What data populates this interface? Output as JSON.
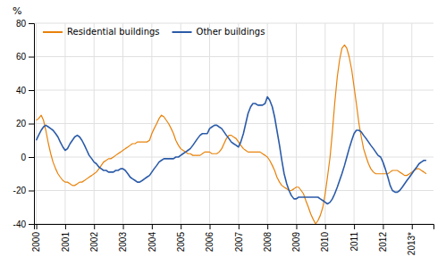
{
  "chart_data": {
    "type": "line",
    "ylabel": "%",
    "xlim": [
      1999.92,
      2013.75
    ],
    "xticks": [
      2000,
      2001,
      2002,
      2003,
      2004,
      2005,
      2006,
      2007,
      2008,
      2009,
      2010,
      2011,
      2012,
      {
        "value": 2013,
        "label": "2013*"
      }
    ],
    "ylim": [
      -40,
      80
    ],
    "yticks": [
      -40,
      -20,
      0,
      20,
      40,
      60,
      80
    ],
    "grid": true,
    "legend": "upper left",
    "x": [
      2000.0,
      2000.08,
      2000.17,
      2000.25,
      2000.33,
      2000.42,
      2000.5,
      2000.58,
      2000.67,
      2000.75,
      2000.83,
      2000.92,
      2001.0,
      2001.08,
      2001.17,
      2001.25,
      2001.33,
      2001.42,
      2001.5,
      2001.58,
      2001.67,
      2001.75,
      2001.83,
      2001.92,
      2002.0,
      2002.08,
      2002.17,
      2002.25,
      2002.33,
      2002.42,
      2002.5,
      2002.58,
      2002.67,
      2002.75,
      2002.83,
      2002.92,
      2003.0,
      2003.08,
      2003.17,
      2003.25,
      2003.33,
      2003.42,
      2003.5,
      2003.58,
      2003.67,
      2003.75,
      2003.83,
      2003.92,
      2004.0,
      2004.08,
      2004.17,
      2004.25,
      2004.33,
      2004.42,
      2004.5,
      2004.58,
      2004.67,
      2004.75,
      2004.83,
      2004.92,
      2005.0,
      2005.08,
      2005.17,
      2005.25,
      2005.33,
      2005.42,
      2005.5,
      2005.58,
      2005.67,
      2005.75,
      2005.83,
      2005.92,
      2006.0,
      2006.08,
      2006.17,
      2006.25,
      2006.33,
      2006.42,
      2006.5,
      2006.58,
      2006.67,
      2006.75,
      2006.83,
      2006.92,
      2007.0,
      2007.08,
      2007.17,
      2007.25,
      2007.33,
      2007.42,
      2007.5,
      2007.58,
      2007.67,
      2007.75,
      2007.83,
      2007.92,
      2008.0,
      2008.08,
      2008.17,
      2008.25,
      2008.33,
      2008.42,
      2008.5,
      2008.58,
      2008.67,
      2008.75,
      2008.83,
      2008.92,
      2009.0,
      2009.08,
      2009.17,
      2009.25,
      2009.33,
      2009.42,
      2009.5,
      2009.58,
      2009.67,
      2009.75,
      2009.83,
      2009.92,
      2010.0,
      2010.08,
      2010.17,
      2010.25,
      2010.33,
      2010.42,
      2010.5,
      2010.58,
      2010.67,
      2010.75,
      2010.83,
      2010.92,
      2011.0,
      2011.08,
      2011.17,
      2011.25,
      2011.33,
      2011.42,
      2011.5,
      2011.58,
      2011.67,
      2011.75,
      2011.83,
      2011.92,
      2012.0,
      2012.08,
      2012.17,
      2012.25,
      2012.33,
      2012.42,
      2012.5,
      2012.58,
      2012.67,
      2012.75,
      2012.83,
      2012.92,
      2013.0,
      2013.08,
      2013.17,
      2013.25,
      2013.33,
      2013.42,
      2013.5
    ],
    "series": [
      {
        "name": "Residential buildings",
        "color": "#E8820A",
        "values": [
          22,
          23,
          25,
          22,
          16,
          8,
          2,
          -3,
          -7,
          -10,
          -12,
          -14,
          -15,
          -15,
          -16,
          -17,
          -17,
          -16,
          -15,
          -15,
          -14,
          -13,
          -12,
          -11,
          -10,
          -9,
          -7,
          -5,
          -3,
          -2,
          -1,
          -1,
          0,
          1,
          2,
          3,
          4,
          5,
          6,
          7,
          8,
          8,
          9,
          9,
          9,
          9,
          9,
          10,
          14,
          17,
          20,
          23,
          25,
          24,
          22,
          20,
          17,
          14,
          10,
          7,
          5,
          4,
          3,
          2,
          2,
          1,
          1,
          1,
          1,
          2,
          3,
          3,
          3,
          2,
          2,
          2,
          3,
          5,
          8,
          11,
          13,
          13,
          12,
          11,
          9,
          7,
          5,
          4,
          3,
          3,
          3,
          3,
          3,
          3,
          2,
          1,
          0,
          -2,
          -5,
          -8,
          -12,
          -15,
          -17,
          -18,
          -19,
          -20,
          -20,
          -19,
          -18,
          -18,
          -20,
          -22,
          -26,
          -30,
          -34,
          -37,
          -40,
          -38,
          -35,
          -30,
          -22,
          -12,
          0,
          15,
          32,
          48,
          58,
          65,
          67,
          65,
          60,
          52,
          42,
          32,
          20,
          12,
          5,
          0,
          -4,
          -7,
          -9,
          -10,
          -10,
          -10,
          -10,
          -10,
          -10,
          -9,
          -8,
          -8,
          -8,
          -9,
          -10,
          -11,
          -11,
          -10,
          -9,
          -8,
          -7,
          -7,
          -8,
          -9,
          -10
        ]
      },
      {
        "name": "Other buildings",
        "color": "#2B5BA8",
        "values": [
          10,
          13,
          16,
          18,
          19,
          18,
          17,
          16,
          14,
          12,
          9,
          6,
          4,
          5,
          8,
          10,
          12,
          13,
          12,
          10,
          7,
          4,
          1,
          -1,
          -3,
          -4,
          -6,
          -7,
          -8,
          -8,
          -9,
          -9,
          -9,
          -8,
          -8,
          -7,
          -7,
          -8,
          -10,
          -12,
          -13,
          -14,
          -15,
          -15,
          -14,
          -13,
          -12,
          -11,
          -9,
          -7,
          -5,
          -3,
          -2,
          -1,
          -1,
          -1,
          -1,
          -1,
          0,
          0,
          1,
          2,
          3,
          4,
          5,
          7,
          9,
          11,
          13,
          14,
          14,
          14,
          17,
          18,
          19,
          19,
          18,
          17,
          15,
          13,
          11,
          9,
          8,
          7,
          6,
          9,
          14,
          20,
          26,
          30,
          32,
          32,
          31,
          31,
          31,
          32,
          36,
          34,
          30,
          24,
          16,
          7,
          -2,
          -10,
          -16,
          -20,
          -23,
          -25,
          -25,
          -24,
          -24,
          -24,
          -24,
          -24,
          -24,
          -24,
          -24,
          -24,
          -25,
          -26,
          -27,
          -28,
          -27,
          -25,
          -22,
          -18,
          -14,
          -10,
          -5,
          0,
          5,
          10,
          14,
          16,
          16,
          15,
          13,
          11,
          9,
          7,
          5,
          3,
          1,
          0,
          -3,
          -7,
          -12,
          -17,
          -20,
          -21,
          -21,
          -20,
          -18,
          -16,
          -14,
          -12,
          -10,
          -8,
          -6,
          -4,
          -3,
          -2,
          -2
        ]
      }
    ]
  }
}
